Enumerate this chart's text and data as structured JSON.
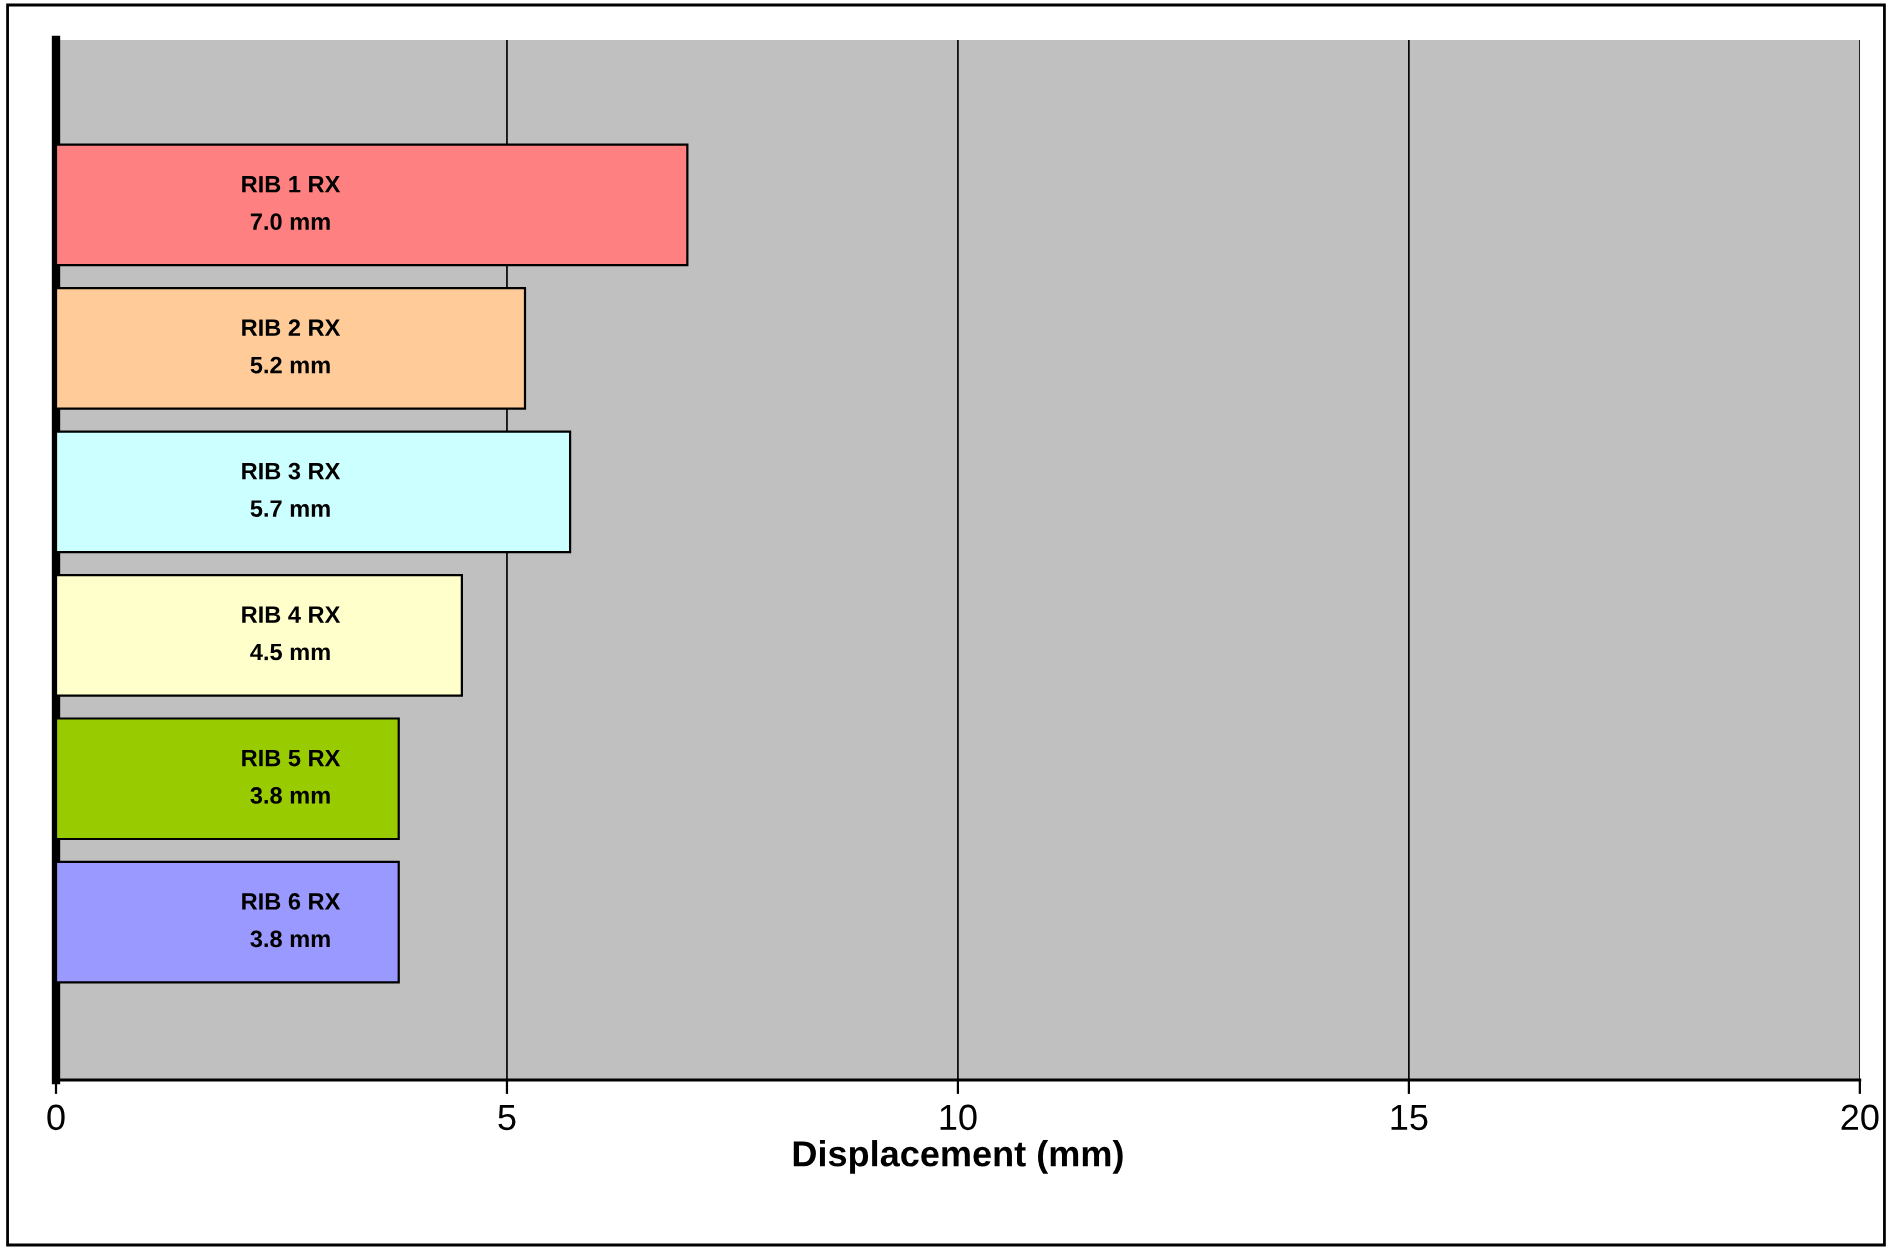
{
  "chart_data": {
    "type": "bar",
    "orientation": "horizontal",
    "xlabel": "Displacement (mm)",
    "categories": [
      "RIB 1 RX",
      "RIB 2 RX",
      "RIB 3 RX",
      "RIB 4 RX",
      "RIB 5 RX",
      "RIB 6 RX"
    ],
    "values": [
      7.0,
      5.2,
      5.7,
      4.5,
      3.8,
      3.8
    ],
    "value_labels": [
      "7.0 mm",
      "5.2 mm",
      "5.7 mm",
      "4.5 mm",
      "3.8 mm",
      "3.8 mm"
    ],
    "colors": [
      "#ff8080",
      "#ffcc99",
      "#ccffff",
      "#ffffcc",
      "#99cc00",
      "#9999ff"
    ],
    "xlim": [
      0,
      20
    ],
    "xticks": [
      0,
      5,
      10,
      15,
      20
    ],
    "grid": "x",
    "tick_labels": "x"
  }
}
